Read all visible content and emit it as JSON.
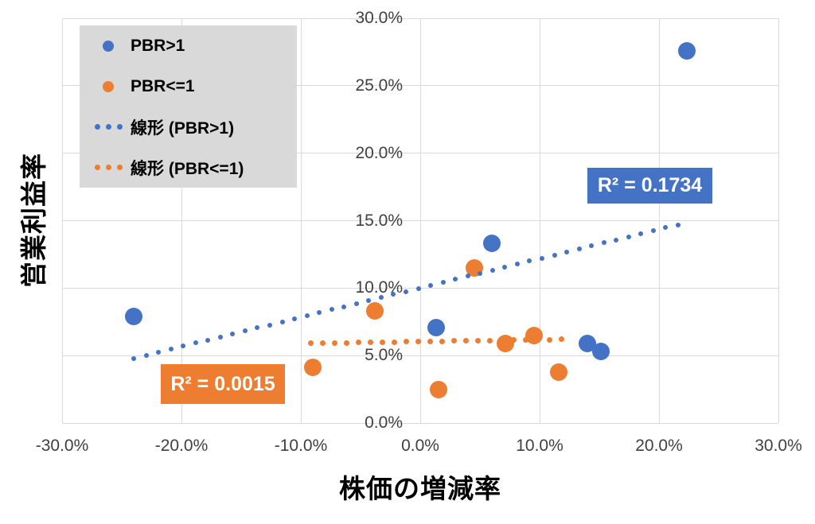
{
  "chart_data": {
    "type": "scatter",
    "title": "",
    "xlabel": "株価の増減率",
    "ylabel": "営業利益率",
    "xlim": [
      -30,
      30
    ],
    "ylim": [
      0,
      30
    ],
    "grid": true,
    "legend_position": "top-left",
    "x_ticks": [
      {
        "value": -30,
        "label": "-30.0%"
      },
      {
        "value": -20,
        "label": "-20.0%"
      },
      {
        "value": -10,
        "label": "-10.0%"
      },
      {
        "value": 0,
        "label": "0.0%"
      },
      {
        "value": 10,
        "label": "10.0%"
      },
      {
        "value": 20,
        "label": "20.0%"
      },
      {
        "value": 30,
        "label": "30.0%"
      }
    ],
    "y_ticks": [
      {
        "value": 30,
        "label": "30.0%"
      },
      {
        "value": 25,
        "label": "25.0%"
      },
      {
        "value": 20,
        "label": "20.0%"
      },
      {
        "value": 15,
        "label": "15.0%"
      },
      {
        "value": 10,
        "label": "10.0%"
      },
      {
        "value": 5,
        "label": "5.0%"
      },
      {
        "value": 0,
        "label": "0.0%"
      }
    ],
    "series": [
      {
        "name": "PBR>1",
        "color": "#4472C4",
        "marker_size": 22,
        "points": [
          [
            22.3,
            27.6
          ],
          [
            6.0,
            13.3
          ],
          [
            -24.0,
            7.9
          ],
          [
            1.3,
            7.1
          ],
          [
            14.0,
            5.9
          ],
          [
            15.1,
            5.3
          ]
        ]
      },
      {
        "name": "PBR<=1",
        "color": "#ED7D31",
        "marker_size": 22,
        "points": [
          [
            4.5,
            11.5
          ],
          [
            -3.8,
            8.3
          ],
          [
            -9.0,
            4.1
          ],
          [
            1.5,
            2.5
          ],
          [
            7.1,
            5.9
          ],
          [
            9.5,
            6.5
          ],
          [
            11.6,
            3.8
          ]
        ]
      }
    ],
    "trendlines": [
      {
        "name": "線形 (PBR>1)",
        "color": "#4472C4",
        "style": "dotted",
        "start": [
          -24.0,
          4.8
        ],
        "end": [
          21.6,
          14.7
        ],
        "r2_label": "R² = 0.1734"
      },
      {
        "name": "線形 (PBR<=1)",
        "color": "#ED7D31",
        "style": "dotted",
        "start": [
          -9.2,
          5.9
        ],
        "end": [
          11.8,
          6.2
        ],
        "r2_label": "R² = 0.0015"
      }
    ],
    "legend_items": [
      {
        "label": "PBR>1",
        "marker": "circle",
        "color": "#4472C4"
      },
      {
        "label": "PBR<=1",
        "marker": "circle",
        "color": "#ED7D31"
      },
      {
        "label": "線形 (PBR>1)",
        "marker": "dotted-line",
        "color": "#4472C4"
      },
      {
        "label": "線形 (PBR<=1)",
        "marker": "dotted-line",
        "color": "#ED7D31"
      }
    ],
    "colors": {
      "grid": "#D9D9D9",
      "tick_text": "#404040",
      "title_text": "#000000",
      "legend_bg": "#D9D9D9",
      "r2_text": "#FFFFFF",
      "background": "#FFFFFF"
    }
  }
}
